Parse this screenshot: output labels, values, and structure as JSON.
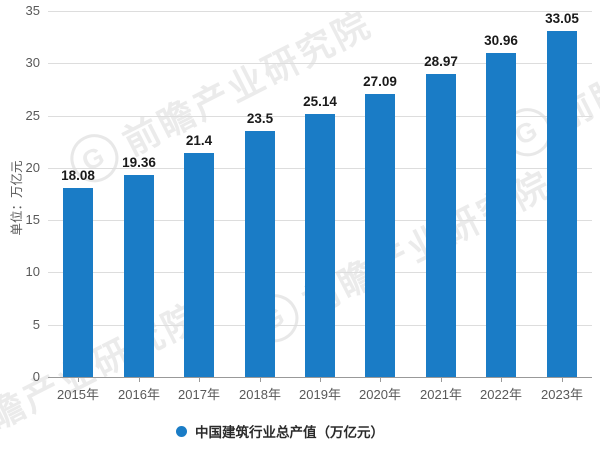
{
  "watermark": {
    "logo_letter": "G",
    "text": "前瞻产业研究院"
  },
  "y_axis": {
    "unit_label": "单位：万亿元"
  },
  "legend": {
    "label": "中国建筑行业总产值（万亿元）",
    "marker_color": "#1a7cc6"
  },
  "chart_data": {
    "type": "bar",
    "categories": [
      "2015年",
      "2016年",
      "2017年",
      "2018年",
      "2019年",
      "2020年",
      "2021年",
      "2022年",
      "2023年"
    ],
    "values": [
      18.08,
      19.36,
      21.4,
      23.5,
      25.14,
      27.09,
      28.97,
      30.96,
      33.05
    ],
    "value_labels": [
      "18.08",
      "19.36",
      "21.4",
      "23.5",
      "25.14",
      "27.09",
      "28.97",
      "30.96",
      "33.05"
    ],
    "title": "",
    "xlabel": "",
    "ylabel": "单位：万亿元",
    "ylim": [
      0,
      35
    ],
    "yticks": [
      0,
      5,
      10,
      15,
      20,
      25,
      30,
      35
    ],
    "grid": true,
    "legend_entries": [
      "中国建筑行业总产值（万亿元）"
    ],
    "legend_position": "bottom-center",
    "bar_color": "#1a7cc6"
  }
}
